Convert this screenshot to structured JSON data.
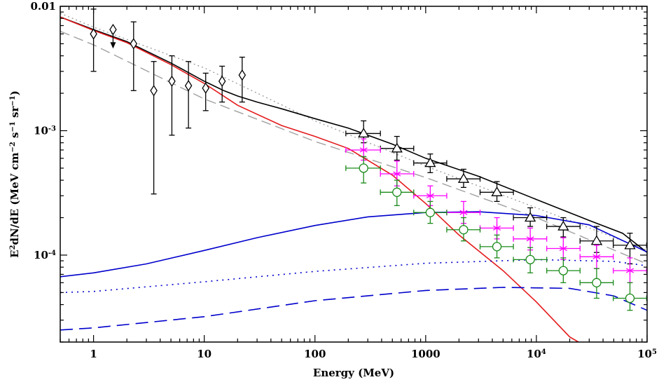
{
  "chart_data": {
    "type": "scatter",
    "title": "",
    "xlabel": "Energy (MeV)",
    "ylabel": {
      "base": "E",
      "sup1": "2",
      "mid": "dN/dE (MeV cm",
      "sup2": "−2",
      "mid2": " s",
      "sup3": "−1",
      "mid3": " sr",
      "sup4": "−1",
      "end": ")"
    },
    "x_scale": "log",
    "y_scale": "log",
    "xlim": [
      0.5,
      100000
    ],
    "ylim": [
      2e-05,
      0.01
    ],
    "x_tick_labels": [
      {
        "v": 1,
        "label": "1"
      },
      {
        "v": 10,
        "label": "10"
      },
      {
        "v": 100,
        "label": "100"
      },
      {
        "v": 1000,
        "label": "1000"
      },
      {
        "v": 10000,
        "label": "10",
        "sup": "4"
      },
      {
        "v": 100000,
        "label": "10",
        "sup": "5"
      }
    ],
    "y_tick_labels": [
      {
        "v": 0.01,
        "label": "0.01"
      },
      {
        "v": 0.001,
        "label": "10",
        "sup": "-3"
      },
      {
        "v": 0.0001,
        "label": "10",
        "sup": "-4"
      }
    ],
    "colors": {
      "black": "#000000",
      "red": "#e41a1c",
      "blue": "#0000cc",
      "gray": "#a0a0a0",
      "magenta": "#ff00ff",
      "green": "#1a8a1a"
    },
    "series": [
      {
        "marker": "diamond",
        "color": "#000000",
        "points": [
          {
            "x": 1.0,
            "y": 0.006,
            "ylo": 0.003,
            "yhi": 0.0095
          },
          {
            "x": 1.5,
            "y": 0.0065,
            "upper_limit": true
          },
          {
            "x": 2.3,
            "y": 0.005,
            "ylo": 0.0021,
            "yhi": 0.0075
          },
          {
            "x": 3.5,
            "y": 0.0021,
            "ylo": 0.00031,
            "yhi": 0.0036
          },
          {
            "x": 5.1,
            "y": 0.0025,
            "ylo": 0.00092,
            "yhi": 0.004
          },
          {
            "x": 7.2,
            "y": 0.0023,
            "ylo": 0.00105,
            "yhi": 0.0036
          },
          {
            "x": 10.3,
            "y": 0.0022,
            "ylo": 0.00145,
            "yhi": 0.0029
          },
          {
            "x": 14.5,
            "y": 0.0025,
            "ylo": 0.0017,
            "yhi": 0.0033
          },
          {
            "x": 22.0,
            "y": 0.0028,
            "ylo": 0.0017,
            "yhi": 0.0039
          }
        ]
      },
      {
        "marker": "triangle",
        "color": "#000000",
        "points": [
          {
            "x": 275,
            "y": 0.00095,
            "xlo": 190,
            "xhi": 390,
            "ylo": 0.0008,
            "yhi": 0.0012
          },
          {
            "x": 550,
            "y": 0.00072,
            "xlo": 390,
            "xhi": 780,
            "ylo": 0.00058,
            "yhi": 0.0009
          },
          {
            "x": 1100,
            "y": 0.00055,
            "xlo": 780,
            "xhi": 1550,
            "ylo": 0.00046,
            "yhi": 0.00065
          },
          {
            "x": 2200,
            "y": 0.00041,
            "xlo": 1550,
            "xhi": 3100,
            "ylo": 0.00035,
            "yhi": 0.00049
          },
          {
            "x": 4400,
            "y": 0.00032,
            "xlo": 3100,
            "xhi": 6200,
            "ylo": 0.00027,
            "yhi": 0.00039
          },
          {
            "x": 8800,
            "y": 0.0002,
            "xlo": 6200,
            "xhi": 12400,
            "ylo": 0.00017,
            "yhi": 0.00024
          },
          {
            "x": 17500,
            "y": 0.00017,
            "xlo": 12400,
            "xhi": 24800,
            "ylo": 0.00014,
            "yhi": 0.0002
          },
          {
            "x": 35000,
            "y": 0.00013,
            "xlo": 24800,
            "xhi": 49500,
            "ylo": 0.000105,
            "yhi": 0.00017
          },
          {
            "x": 70000,
            "y": 0.00012,
            "xlo": 49500,
            "xhi": 99000,
            "ylo": 8.5e-05,
            "yhi": 0.00015
          }
        ]
      },
      {
        "marker": "asterisk",
        "color": "#ff00ff",
        "points": [
          {
            "x": 275,
            "y": 0.0007,
            "xlo": 190,
            "xhi": 390,
            "ylo": 0.00058,
            "yhi": 0.00086
          },
          {
            "x": 550,
            "y": 0.00045,
            "xlo": 390,
            "xhi": 780,
            "ylo": 0.00036,
            "yhi": 0.00057
          },
          {
            "x": 1100,
            "y": 0.0003,
            "xlo": 780,
            "xhi": 1550,
            "ylo": 0.00025,
            "yhi": 0.00036
          },
          {
            "x": 2200,
            "y": 0.00022,
            "xlo": 1550,
            "xhi": 3100,
            "ylo": 0.00018,
            "yhi": 0.00027
          },
          {
            "x": 4400,
            "y": 0.000165,
            "xlo": 3100,
            "xhi": 6200,
            "ylo": 0.000135,
            "yhi": 0.0002
          },
          {
            "x": 8800,
            "y": 0.000135,
            "xlo": 6200,
            "xhi": 12400,
            "ylo": 0.00011,
            "yhi": 0.000165
          },
          {
            "x": 17500,
            "y": 0.000113,
            "xlo": 12400,
            "xhi": 24800,
            "ylo": 9.2e-05,
            "yhi": 0.000138
          },
          {
            "x": 35000,
            "y": 9.7e-05,
            "xlo": 24800,
            "xhi": 49500,
            "ylo": 7.8e-05,
            "yhi": 0.00012
          },
          {
            "x": 70000,
            "y": 7.5e-05,
            "xlo": 49500,
            "xhi": 99000,
            "ylo": 6e-05,
            "yhi": 9.5e-05
          }
        ]
      },
      {
        "marker": "circle",
        "color": "#1a8a1a",
        "points": [
          {
            "x": 275,
            "y": 0.0005,
            "xlo": 190,
            "xhi": 390,
            "ylo": 0.00038,
            "yhi": 0.00062
          },
          {
            "x": 550,
            "y": 0.00032,
            "xlo": 390,
            "xhi": 780,
            "ylo": 0.00025,
            "yhi": 0.0004
          },
          {
            "x": 1100,
            "y": 0.00022,
            "xlo": 780,
            "xhi": 1550,
            "ylo": 0.00018,
            "yhi": 0.00027
          },
          {
            "x": 2200,
            "y": 0.00016,
            "xlo": 1550,
            "xhi": 3100,
            "ylo": 0.00013,
            "yhi": 0.0002
          },
          {
            "x": 4400,
            "y": 0.000117,
            "xlo": 3100,
            "xhi": 6200,
            "ylo": 9.5e-05,
            "yhi": 0.000145
          },
          {
            "x": 8800,
            "y": 9.2e-05,
            "xlo": 6200,
            "xhi": 12400,
            "ylo": 7.2e-05,
            "yhi": 0.000115
          },
          {
            "x": 17500,
            "y": 7.5e-05,
            "xlo": 12400,
            "xhi": 24800,
            "ylo": 6e-05,
            "yhi": 9.5e-05
          },
          {
            "x": 35000,
            "y": 6e-05,
            "xlo": 24800,
            "xhi": 49500,
            "ylo": 4.5e-05,
            "yhi": 7.8e-05
          },
          {
            "x": 70000,
            "y": 4.5e-05,
            "xlo": 49500,
            "xhi": 99000,
            "ylo": 3.6e-05,
            "yhi": 6e-05
          }
        ]
      }
    ],
    "curves": [
      {
        "color": "#a0a0a0",
        "dash": "2 4",
        "width": 1.4,
        "points": [
          [
            0.5,
            0.0088
          ],
          [
            1,
            0.0068
          ],
          [
            10,
            0.0032
          ],
          [
            100,
            0.0012
          ],
          [
            1000,
            0.00052
          ],
          [
            10000,
            0.00024
          ],
          [
            100000,
            0.00011
          ]
        ]
      },
      {
        "color": "#a0a0a0",
        "dash": "14 7",
        "width": 1.4,
        "points": [
          [
            0.5,
            0.0063
          ],
          [
            1,
            0.0049
          ],
          [
            10,
            0.0018
          ],
          [
            100,
            0.00082
          ],
          [
            1000,
            0.00042
          ],
          [
            10000,
            0.0002
          ],
          [
            100000,
            8.5e-05
          ]
        ]
      },
      {
        "color": "#000000",
        "dash": "",
        "width": 1.6,
        "points": [
          [
            0.5,
            0.0082
          ],
          [
            1,
            0.0065
          ],
          [
            2,
            0.0052
          ],
          [
            5,
            0.0035
          ],
          [
            10,
            0.0025
          ],
          [
            15,
            0.0021
          ],
          [
            20,
            0.0019
          ],
          [
            30,
            0.0017
          ],
          [
            50,
            0.0015
          ],
          [
            100,
            0.00125
          ],
          [
            200,
            0.00105
          ],
          [
            500,
            0.00078
          ],
          [
            1000,
            0.0006
          ],
          [
            3000,
            0.00043
          ],
          [
            10000,
            0.00028
          ],
          [
            30000,
            0.00019
          ],
          [
            60000,
            0.00015
          ],
          [
            100000,
            0.000105
          ]
        ]
      },
      {
        "color": "#e41a1c",
        "dash": "",
        "width": 1.6,
        "points": [
          [
            0.5,
            0.0082
          ],
          [
            1,
            0.0064
          ],
          [
            2,
            0.0051
          ],
          [
            5,
            0.0034
          ],
          [
            10,
            0.0024
          ],
          [
            20,
            0.0016
          ],
          [
            50,
            0.0011
          ],
          [
            100,
            0.0009
          ],
          [
            200,
            0.00072
          ],
          [
            500,
            0.00044
          ],
          [
            1000,
            0.00026
          ],
          [
            2000,
            0.000145
          ],
          [
            5000,
            7.5e-05
          ],
          [
            10000,
            4.2e-05
          ],
          [
            20000,
            2.2e-05
          ],
          [
            24000,
            2e-05
          ]
        ]
      },
      {
        "color": "#0000cc",
        "dash": "",
        "width": 1.6,
        "points": [
          [
            0.5,
            6.7e-05
          ],
          [
            1,
            7.2e-05
          ],
          [
            3,
            8.5e-05
          ],
          [
            10,
            0.000109
          ],
          [
            30,
            0.000138
          ],
          [
            100,
            0.000173
          ],
          [
            300,
            0.000203
          ],
          [
            1000,
            0.00022
          ],
          [
            3000,
            0.000223
          ],
          [
            10000,
            0.000208
          ],
          [
            30000,
            0.000175
          ],
          [
            100000,
            0.000106
          ]
        ]
      },
      {
        "color": "#0000cc",
        "dash": "2 6",
        "width": 1.6,
        "points": [
          [
            0.5,
            5e-05
          ],
          [
            1,
            5.1e-05
          ],
          [
            10,
            6.1e-05
          ],
          [
            100,
            7.4e-05
          ],
          [
            1000,
            8.6e-05
          ],
          [
            10000,
            9.2e-05
          ],
          [
            50000,
            8.9e-05
          ],
          [
            100000,
            8.2e-05
          ]
        ]
      },
      {
        "color": "#0000cc",
        "dash": "18 9",
        "width": 1.6,
        "points": [
          [
            0.5,
            2.5e-05
          ],
          [
            1,
            2.6e-05
          ],
          [
            10,
            3.2e-05
          ],
          [
            100,
            4.3e-05
          ],
          [
            1000,
            5.2e-05
          ],
          [
            5000,
            5.5e-05
          ],
          [
            20000,
            5.4e-05
          ],
          [
            50000,
            4.7e-05
          ],
          [
            100000,
            3.6e-05
          ]
        ]
      }
    ]
  }
}
